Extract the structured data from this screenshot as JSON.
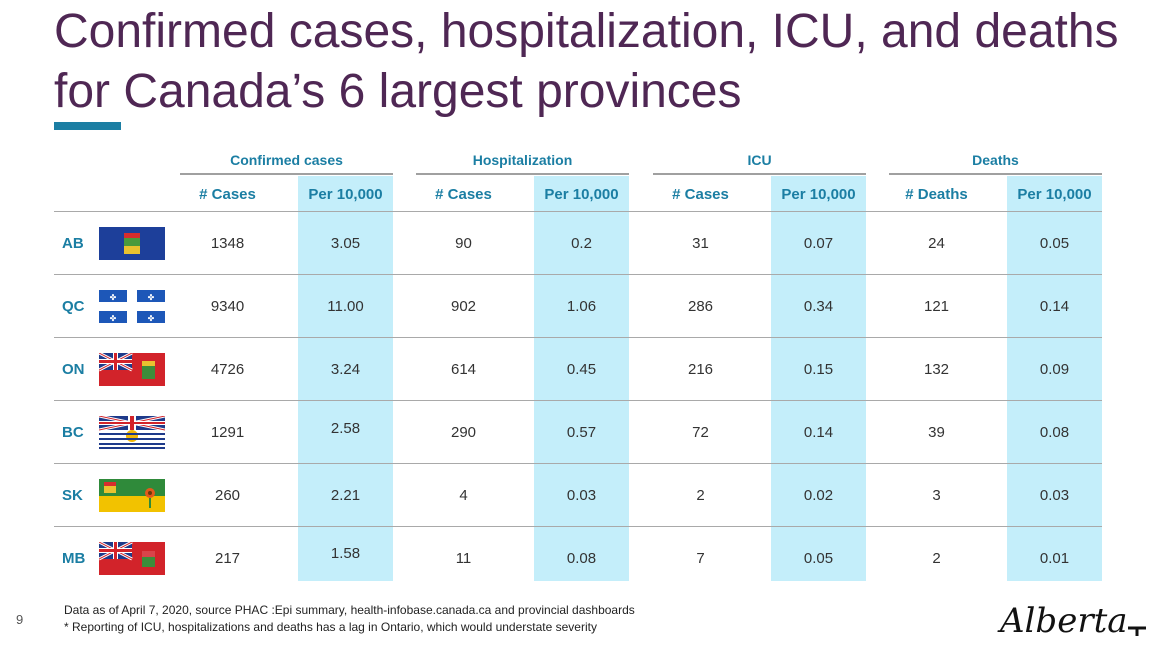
{
  "title": "Confirmed cases, hospitalization, ICU, and deaths for Canada’s 6 largest provinces",
  "groups": [
    "Confirmed cases",
    "Hospitalization",
    "ICU",
    "Deaths"
  ],
  "subheaders": [
    "# Cases",
    "Per 10,000",
    "# Cases",
    "Per 10,000",
    "# Cases",
    "Per 10,000",
    "# Deaths",
    "Per 10,000"
  ],
  "rows": [
    {
      "province": "AB",
      "flag": "alberta-flag",
      "values": [
        "1348",
        "3.05",
        "90",
        "0.2",
        "31",
        "0.07",
        "24",
        "0.05"
      ]
    },
    {
      "province": "QC",
      "flag": "quebec-flag",
      "values": [
        "9340",
        "11.00",
        "902",
        "1.06",
        "286",
        "0.34",
        "121",
        "0.14"
      ]
    },
    {
      "province": "ON",
      "flag": "ontario-flag",
      "values": [
        "4726",
        "3.24",
        "614",
        "0.45",
        "216",
        "0.15",
        "132",
        "0.09"
      ]
    },
    {
      "province": "BC",
      "flag": "british-columbia-flag",
      "values": [
        "1291",
        "2.58",
        "290",
        "0.57",
        "72",
        "0.14",
        "39",
        "0.08"
      ]
    },
    {
      "province": "SK",
      "flag": "saskatchewan-flag",
      "values": [
        "260",
        "2.21",
        "4",
        "0.03",
        "2",
        "0.02",
        "3",
        "0.03"
      ]
    },
    {
      "province": "MB",
      "flag": "manitoba-flag",
      "values": [
        "217",
        "1.58",
        "11",
        "0.08",
        "7",
        "0.05",
        "2",
        "0.01"
      ]
    }
  ],
  "footnotes": [
    "Data as of April 7, 2020, source PHAC :Epi summary, health-infobase.canada.ca and provincial dashboards",
    "* Reporting of ICU, hospitalizations and deaths has a lag in Ontario, which would understate severity"
  ],
  "page_number": "9",
  "logo_text": "Alberta",
  "colors": {
    "title": "#4f2754",
    "accent": "#1b7ea3",
    "highlight": "#c4eefa"
  }
}
